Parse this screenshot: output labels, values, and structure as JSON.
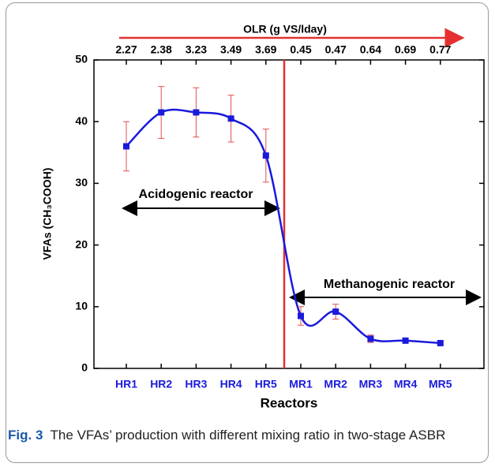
{
  "chart_data": {
    "type": "line",
    "top_axis_label": "OLR (g VS/lday)",
    "top_categories": [
      2.27,
      2.38,
      3.23,
      3.49,
      3.69,
      0.45,
      0.47,
      0.64,
      0.69,
      0.77
    ],
    "categories": [
      "HR1",
      "HR2",
      "HR3",
      "HR4",
      "HR5",
      "MR1",
      "MR2",
      "MR3",
      "MR4",
      "MR5"
    ],
    "x_label": "Reactors",
    "y_label": "VFAs (CH₃COOH)",
    "series": [
      {
        "name": "VFAs",
        "color": "#1a1adc",
        "values": [
          36,
          41.5,
          41.5,
          40.5,
          34.5,
          8.5,
          9.2,
          4.8,
          4.5,
          4.1
        ],
        "errors": [
          4,
          4.2,
          4,
          3.8,
          4.3,
          1.5,
          1.2,
          0.6,
          0.3,
          0.2
        ]
      }
    ],
    "error_color": "#e05050",
    "ylim": [
      0,
      50
    ],
    "yticks": [
      0,
      10,
      20,
      30,
      40,
      50
    ],
    "annotations": [
      "Acidogenic reactor",
      "Methanogenic reactor"
    ],
    "caption": {
      "label": "Fig. 3",
      "text": "The VFAs’ production with different mixing ratio in two-stage ASBR"
    }
  }
}
